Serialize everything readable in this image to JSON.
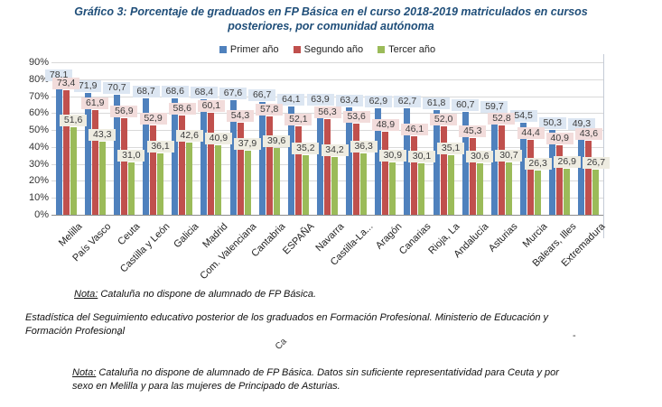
{
  "title": {
    "line1": "Gráfico 3: Porcentaje de graduados en FP Básica en el curso 2018-2019 matriculados en cursos",
    "line2": "posteriores, por comunidad autónoma"
  },
  "chart_data": {
    "type": "bar",
    "categories": [
      "Melilla",
      "País Vasco",
      "Ceuta",
      "Castilla y León",
      "Galicia",
      "Madrid",
      "Com. Valenciana",
      "Cantabria",
      "ESPAÑA",
      "Navarra",
      "Castilla-La...",
      "Aragón",
      "Canarias",
      "Rioja, La",
      "Andalucía",
      "Asturias",
      "Murcia",
      "Balears, Illes",
      "Extremadura"
    ],
    "series": [
      {
        "name": "Primer año",
        "color": "#4F81BD",
        "label_bg": "#DCE6F2",
        "values": [
          78.1,
          71.9,
          70.7,
          68.7,
          68.6,
          68.4,
          67.6,
          66.7,
          64.1,
          63.9,
          63.4,
          62.9,
          62.7,
          61.8,
          60.7,
          59.7,
          54.5,
          50.3,
          49.3
        ]
      },
      {
        "name": "Segundo año",
        "color": "#C0504D",
        "label_bg": "#F2DCDB",
        "values": [
          73.4,
          61.9,
          56.9,
          52.9,
          58.6,
          60.1,
          54.3,
          57.8,
          52.1,
          56.3,
          53.6,
          48.9,
          46.1,
          52.0,
          45.3,
          52.8,
          44.4,
          40.9,
          43.6
        ]
      },
      {
        "name": "Tercer año",
        "color": "#9BBB59",
        "label_bg": "#EEECE1",
        "values": [
          51.6,
          43.3,
          31.0,
          36.1,
          42.6,
          40.9,
          37.9,
          39.6,
          35.2,
          34.2,
          36.3,
          30.9,
          30.1,
          35.1,
          30.6,
          30.7,
          26.3,
          26.9,
          26.7
        ]
      }
    ],
    "title": "Gráfico 3: Porcentaje de graduados en FP Básica en el curso 2018-2019 matriculados en cursos posteriores, por comunidad autónoma",
    "xlabel": "",
    "ylabel": "",
    "ylim": [
      0,
      90
    ],
    "ytick_step": 10,
    "ytick_suffix": "%",
    "decimal_separator": ",",
    "grid": true,
    "legend_position": "top"
  },
  "notes": {
    "note1": {
      "label": "Nota:",
      "text": " Cataluña no dispone de alumnado de FP Básica."
    },
    "source": {
      "line1": "Estadística del Seguimiento educativo posterior de los graduados en Formación Profesional. Ministerio de Educación y",
      "line2": "Formación Profesional"
    },
    "note2": {
      "label": "Nota:",
      "line1": " Cataluña no dispone de alumnado de FP Básica. Datos sin suficiente representatividad para Ceuta y por",
      "line2": "sexo en Melilla y para las mujeres de Principado de Asturias."
    },
    "artifacts": {
      "breve": "˘",
      "ca": "Ca",
      "dash": "-"
    }
  },
  "colors": {
    "title": "#1F4E79",
    "grid": "#D9D9D9",
    "axis": "#8C8C8C",
    "primer": "#4F81BD",
    "segundo": "#C0504D",
    "tercer": "#9BBB59",
    "label_bg_primer": "#DCE6F2",
    "label_bg_segundo": "#F2DCDB",
    "label_bg_tercer": "#EEECE1"
  }
}
